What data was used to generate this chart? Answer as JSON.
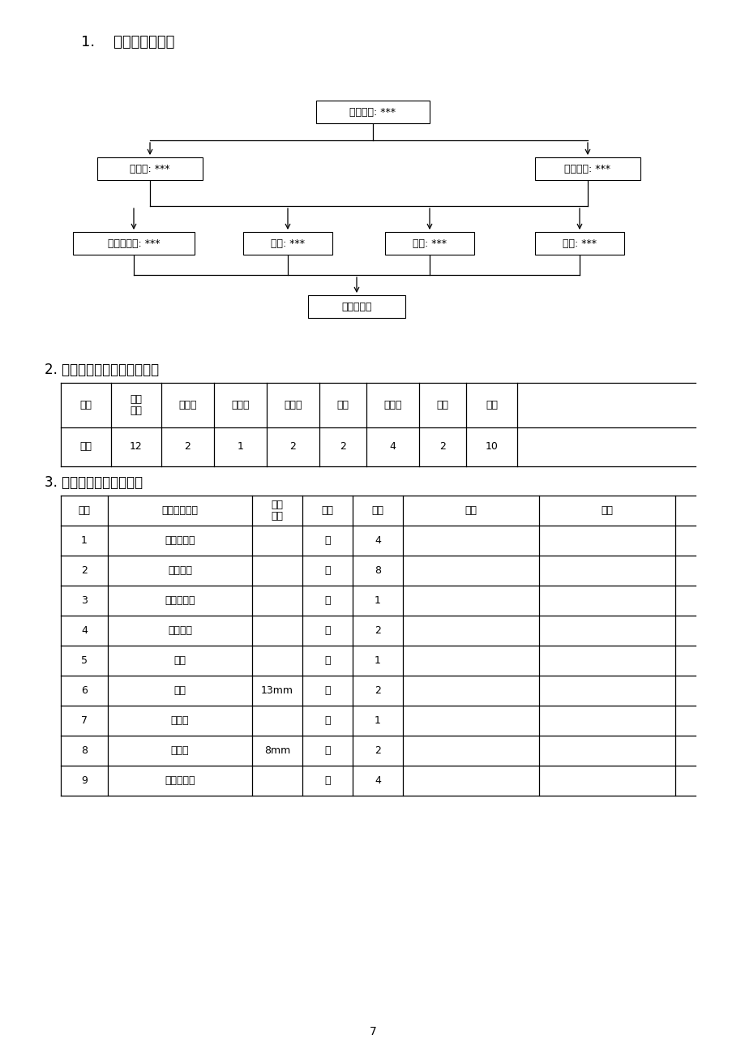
{
  "title1": "1.    施工治理网络图",
  "title2": "2. 电气仪表安装劳动力安排：",
  "title3": "3. 主要施工机械使用表：",
  "bg_color": "#ffffff",
  "page_number": "7",
  "org_chart": {
    "nodes": {
      "top": "工程经理: ***",
      "left2": "副经理: ***",
      "right2": "技术负责: ***",
      "n1": "技术、工长: ***",
      "n2": "质量: ***",
      "n3": "安全: ***",
      "n4": "材料: ***",
      "bottom": "各施工班组"
    }
  },
  "table1_headers": [
    "工种",
    "安装\n电工",
    "电调工",
    "计量工",
    "起重工",
    "钳工",
    "电焊工",
    "架工",
    "普工"
  ],
  "table1_row": [
    "数量",
    "12",
    "2",
    "1",
    "2",
    "2",
    "4",
    "2",
    "10"
  ],
  "table2_headers": [
    "序号",
    "机械设备名称",
    "型号\n规格",
    "单位",
    "数量",
    "用途",
    "备注"
  ],
  "table2_rows": [
    [
      "1",
      "沟通电焊机",
      "",
      "台",
      "4",
      "",
      ""
    ],
    [
      "2",
      "氧乙炔瓶",
      "",
      "套",
      "8",
      "",
      ""
    ],
    [
      "3",
      "电动套丝机",
      "",
      "台",
      "1",
      "",
      ""
    ],
    [
      "4",
      "轻型绞板",
      "",
      "套",
      "2",
      "",
      ""
    ],
    [
      "5",
      "台钻",
      "",
      "台",
      "1",
      "",
      ""
    ],
    [
      "6",
      "电钻",
      "13mm",
      "把",
      "2",
      "",
      ""
    ],
    [
      "7",
      "磁座钻",
      "",
      "台",
      "1",
      "",
      ""
    ],
    [
      "8",
      "手枪钻",
      "8mm",
      "把",
      "2",
      "",
      ""
    ],
    [
      "9",
      "角向磨光机",
      "",
      "台",
      "4",
      "",
      ""
    ]
  ]
}
